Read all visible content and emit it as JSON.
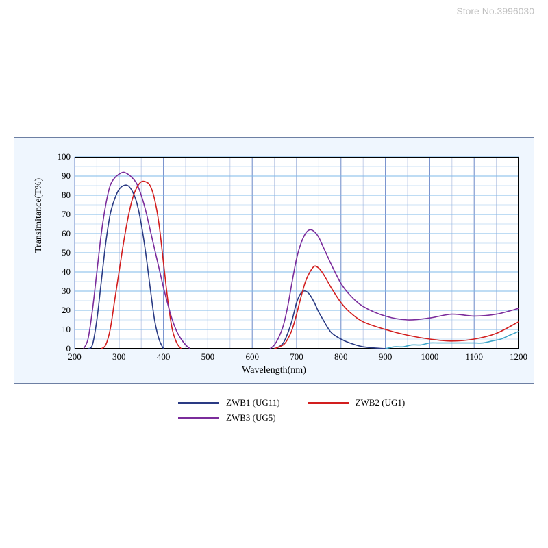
{
  "watermark": "Store No.3996030",
  "chart": {
    "type": "line",
    "xlabel": "Wavelength(nm)",
    "ylabel": "Transimitance(T%)",
    "xlim": [
      200,
      1200
    ],
    "ylim": [
      0,
      100
    ],
    "xtick_step": 100,
    "ytick_step": 10,
    "background_color": "#eff6fe",
    "plot_background": "#ffffff",
    "frame_border": "#6d7fa3",
    "grid_color_x": "#6d88c8",
    "grid_color_y": "#7eb8e8",
    "minor_x_per_major": 2,
    "minor_y_per_major": 2,
    "label_fontsize": 14,
    "tick_fontsize": 13,
    "line_width": 1.6,
    "series": [
      {
        "name": "ZWB1 (UG11)",
        "color": "#2a3a83",
        "points": [
          [
            230,
            0
          ],
          [
            240,
            2
          ],
          [
            250,
            15
          ],
          [
            260,
            35
          ],
          [
            270,
            55
          ],
          [
            280,
            70
          ],
          [
            290,
            78
          ],
          [
            300,
            83
          ],
          [
            310,
            85
          ],
          [
            320,
            85
          ],
          [
            330,
            82
          ],
          [
            340,
            76
          ],
          [
            350,
            65
          ],
          [
            360,
            50
          ],
          [
            370,
            32
          ],
          [
            380,
            15
          ],
          [
            390,
            5
          ],
          [
            400,
            0
          ],
          [
            650,
            0
          ],
          [
            660,
            1
          ],
          [
            670,
            3
          ],
          [
            680,
            8
          ],
          [
            690,
            15
          ],
          [
            700,
            24
          ],
          [
            710,
            29
          ],
          [
            720,
            30
          ],
          [
            730,
            28
          ],
          [
            740,
            24
          ],
          [
            750,
            19
          ],
          [
            760,
            15
          ],
          [
            770,
            11
          ],
          [
            780,
            8
          ],
          [
            800,
            5
          ],
          [
            820,
            3
          ],
          [
            850,
            1
          ],
          [
            900,
            0
          ]
        ]
      },
      {
        "name": "ZWB2 (UG1)",
        "color": "#d21e1e",
        "points": [
          [
            260,
            0
          ],
          [
            270,
            2
          ],
          [
            280,
            10
          ],
          [
            290,
            25
          ],
          [
            300,
            40
          ],
          [
            310,
            55
          ],
          [
            320,
            68
          ],
          [
            330,
            78
          ],
          [
            340,
            84
          ],
          [
            350,
            87
          ],
          [
            360,
            87
          ],
          [
            370,
            85
          ],
          [
            380,
            78
          ],
          [
            390,
            65
          ],
          [
            400,
            45
          ],
          [
            410,
            25
          ],
          [
            420,
            10
          ],
          [
            430,
            3
          ],
          [
            440,
            0
          ],
          [
            650,
            0
          ],
          [
            670,
            2
          ],
          [
            680,
            5
          ],
          [
            690,
            10
          ],
          [
            700,
            18
          ],
          [
            710,
            27
          ],
          [
            720,
            35
          ],
          [
            730,
            40
          ],
          [
            740,
            43
          ],
          [
            750,
            42
          ],
          [
            760,
            39
          ],
          [
            770,
            35
          ],
          [
            780,
            31
          ],
          [
            800,
            24
          ],
          [
            820,
            19
          ],
          [
            850,
            14
          ],
          [
            900,
            10
          ],
          [
            950,
            7
          ],
          [
            1000,
            5
          ],
          [
            1050,
            4
          ],
          [
            1100,
            5
          ],
          [
            1150,
            8
          ],
          [
            1200,
            14
          ]
        ]
      },
      {
        "name": "ZWB3 (UG5)",
        "color": "#7b2c9b",
        "points": [
          [
            220,
            0
          ],
          [
            230,
            5
          ],
          [
            240,
            20
          ],
          [
            250,
            40
          ],
          [
            260,
            60
          ],
          [
            270,
            75
          ],
          [
            280,
            85
          ],
          [
            290,
            89
          ],
          [
            300,
            91
          ],
          [
            310,
            92
          ],
          [
            320,
            91
          ],
          [
            330,
            89
          ],
          [
            340,
            86
          ],
          [
            350,
            80
          ],
          [
            360,
            72
          ],
          [
            370,
            62
          ],
          [
            380,
            52
          ],
          [
            390,
            42
          ],
          [
            400,
            32
          ],
          [
            410,
            23
          ],
          [
            420,
            15
          ],
          [
            430,
            9
          ],
          [
            440,
            5
          ],
          [
            450,
            2
          ],
          [
            460,
            0
          ],
          [
            640,
            0
          ],
          [
            650,
            2
          ],
          [
            660,
            6
          ],
          [
            670,
            12
          ],
          [
            680,
            22
          ],
          [
            690,
            35
          ],
          [
            700,
            47
          ],
          [
            710,
            55
          ],
          [
            720,
            60
          ],
          [
            730,
            62
          ],
          [
            740,
            61
          ],
          [
            750,
            58
          ],
          [
            760,
            53
          ],
          [
            770,
            48
          ],
          [
            780,
            43
          ],
          [
            800,
            34
          ],
          [
            820,
            28
          ],
          [
            850,
            22
          ],
          [
            900,
            17
          ],
          [
            950,
            15
          ],
          [
            1000,
            16
          ],
          [
            1050,
            18
          ],
          [
            1100,
            17
          ],
          [
            1150,
            18
          ],
          [
            1200,
            21
          ]
        ]
      },
      {
        "name": "",
        "color": "#3ea6c9",
        "hidden_in_legend": true,
        "points": [
          [
            900,
            0
          ],
          [
            920,
            1
          ],
          [
            940,
            1
          ],
          [
            960,
            2
          ],
          [
            980,
            2
          ],
          [
            1000,
            3
          ],
          [
            1020,
            3
          ],
          [
            1040,
            3
          ],
          [
            1060,
            3
          ],
          [
            1080,
            3
          ],
          [
            1100,
            3
          ],
          [
            1120,
            3
          ],
          [
            1140,
            4
          ],
          [
            1160,
            5
          ],
          [
            1180,
            7
          ],
          [
            1200,
            9
          ]
        ]
      }
    ],
    "legend": {
      "rows": [
        [
          0,
          1
        ],
        [
          2
        ]
      ]
    }
  }
}
